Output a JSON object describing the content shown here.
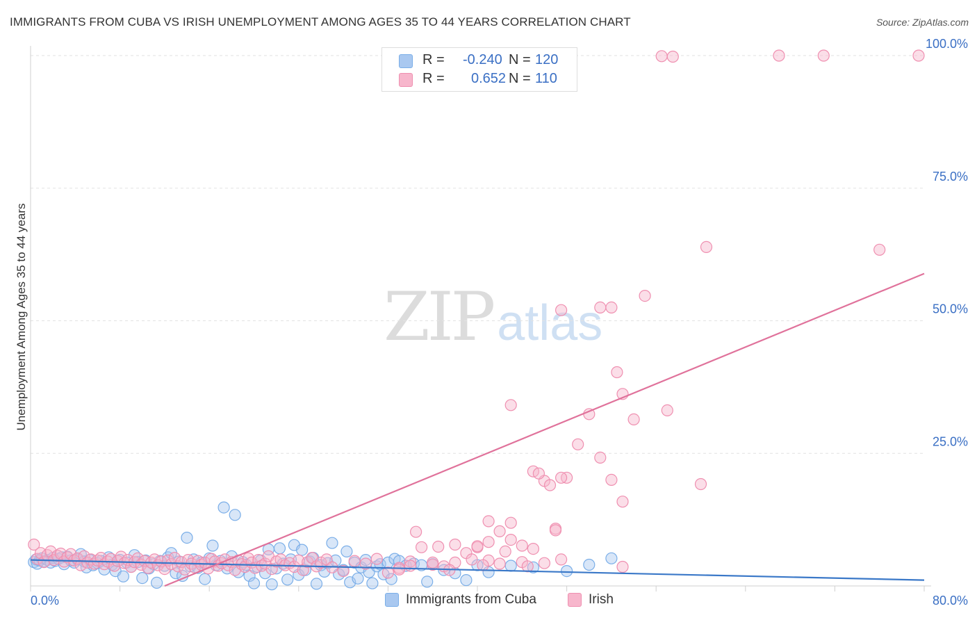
{
  "title": "IMMIGRANTS FROM CUBA VS IRISH UNEMPLOYMENT AMONG AGES 35 TO 44 YEARS CORRELATION CHART",
  "source": "Source: ZipAtlas.com",
  "watermark": {
    "zip": "ZIP",
    "atlas": "atlas"
  },
  "legend_top": [
    {
      "r_label": "R =",
      "r_value": "-0.240",
      "n_label": "N =",
      "n_value": "120",
      "color": "#a9c8f0"
    },
    {
      "r_label": "R =",
      "r_value": "0.652",
      "n_label": "N =",
      "n_value": "110",
      "color": "#f7b6cc"
    }
  ],
  "chart_data": {
    "type": "scatter",
    "title": "IMMIGRANTS FROM CUBA VS IRISH UNEMPLOYMENT AMONG AGES 35 TO 44 YEARS CORRELATION CHART",
    "xlabel": "",
    "ylabel": "Unemployment Among Ages 35 to 44 years",
    "xlim": [
      0,
      80
    ],
    "ylim": [
      0,
      100
    ],
    "x_tick_labels": [
      "0.0%",
      "80.0%"
    ],
    "y_tick_labels": [
      "25.0%",
      "50.0%",
      "75.0%",
      "100.0%"
    ],
    "grid": true,
    "legend_position": "bottom",
    "series": [
      {
        "name": "Immigrants from Cuba",
        "color": "#7aaee8",
        "fill": "#a9c8f0",
        "r": -0.24,
        "n": 120,
        "trend": {
          "x": [
            0,
            80
          ],
          "y": [
            4.9,
            1.1
          ]
        },
        "points": [
          [
            0.3,
            4.5
          ],
          [
            0.5,
            5.0
          ],
          [
            0.6,
            4.2
          ],
          [
            0.8,
            4.8
          ],
          [
            1.0,
            5.2
          ],
          [
            1.2,
            4.6
          ],
          [
            1.5,
            4.9
          ],
          [
            1.8,
            4.4
          ],
          [
            2.0,
            5.3
          ],
          [
            2.2,
            4.7
          ],
          [
            2.5,
            5.1
          ],
          [
            2.8,
            5.4
          ],
          [
            3.0,
            4.1
          ],
          [
            3.3,
            5.5
          ],
          [
            3.6,
            4.8
          ],
          [
            3.9,
            4.4
          ],
          [
            4.2,
            5.0
          ],
          [
            4.5,
            6.0
          ],
          [
            4.8,
            4.6
          ],
          [
            5.0,
            3.5
          ],
          [
            5.3,
            4.9
          ],
          [
            5.6,
            3.9
          ],
          [
            6.0,
            4.3
          ],
          [
            6.3,
            4.7
          ],
          [
            6.6,
            3.1
          ],
          [
            7.0,
            5.4
          ],
          [
            7.3,
            4.0
          ],
          [
            7.6,
            2.8
          ],
          [
            8.0,
            4.9
          ],
          [
            8.3,
            1.8
          ],
          [
            8.6,
            4.4
          ],
          [
            9.0,
            3.6
          ],
          [
            9.3,
            5.8
          ],
          [
            9.6,
            4.5
          ],
          [
            10.0,
            1.5
          ],
          [
            10.3,
            4.8
          ],
          [
            10.6,
            3.3
          ],
          [
            11.0,
            4.1
          ],
          [
            11.3,
            0.6
          ],
          [
            11.6,
            4.7
          ],
          [
            12.0,
            3.8
          ],
          [
            12.3,
            5.4
          ],
          [
            12.6,
            6.2
          ],
          [
            13.0,
            2.4
          ],
          [
            13.3,
            4.6
          ],
          [
            13.6,
            1.9
          ],
          [
            14.0,
            9.1
          ],
          [
            14.3,
            3.7
          ],
          [
            14.6,
            5.0
          ],
          [
            15.0,
            3.4
          ],
          [
            15.3,
            4.4
          ],
          [
            15.6,
            1.3
          ],
          [
            16.0,
            5.2
          ],
          [
            16.3,
            7.6
          ],
          [
            16.6,
            3.9
          ],
          [
            17.0,
            4.7
          ],
          [
            17.3,
            14.8
          ],
          [
            17.6,
            3.3
          ],
          [
            18.0,
            5.6
          ],
          [
            18.3,
            13.4
          ],
          [
            18.6,
            2.6
          ],
          [
            19.0,
            4.5
          ],
          [
            19.3,
            4.0
          ],
          [
            19.6,
            1.9
          ],
          [
            20.0,
            0.5
          ],
          [
            20.3,
            3.6
          ],
          [
            20.6,
            4.8
          ],
          [
            21.0,
            2.4
          ],
          [
            21.3,
            6.9
          ],
          [
            21.6,
            0.3
          ],
          [
            22.0,
            3.3
          ],
          [
            22.3,
            7.1
          ],
          [
            22.6,
            4.2
          ],
          [
            23.0,
            1.2
          ],
          [
            23.3,
            5.0
          ],
          [
            23.6,
            7.7
          ],
          [
            24.0,
            2.1
          ],
          [
            24.3,
            6.8
          ],
          [
            24.6,
            3.0
          ],
          [
            25.0,
            4.6
          ],
          [
            25.3,
            5.3
          ],
          [
            25.6,
            0.4
          ],
          [
            26.0,
            3.9
          ],
          [
            26.3,
            2.7
          ],
          [
            26.6,
            4.3
          ],
          [
            27.0,
            8.1
          ],
          [
            27.3,
            4.8
          ],
          [
            27.6,
            2.2
          ],
          [
            28.0,
            3.0
          ],
          [
            28.3,
            6.5
          ],
          [
            28.6,
            0.7
          ],
          [
            29.0,
            4.4
          ],
          [
            29.3,
            1.4
          ],
          [
            29.6,
            3.5
          ],
          [
            30.0,
            4.9
          ],
          [
            30.3,
            2.6
          ],
          [
            30.6,
            0.5
          ],
          [
            31.0,
            3.7
          ],
          [
            31.3,
            4.1
          ],
          [
            31.6,
            2.2
          ],
          [
            32.0,
            4.4
          ],
          [
            32.3,
            1.3
          ],
          [
            32.6,
            5.1
          ],
          [
            33.0,
            4.7
          ],
          [
            33.6,
            3.8
          ],
          [
            34.3,
            4.2
          ],
          [
            35.0,
            3.9
          ],
          [
            35.5,
            0.8
          ],
          [
            36.0,
            4.1
          ],
          [
            37.0,
            3.0
          ],
          [
            38.0,
            2.4
          ],
          [
            39.0,
            1.1
          ],
          [
            40.0,
            3.9
          ],
          [
            41.0,
            2.6
          ],
          [
            43.0,
            3.8
          ],
          [
            45.0,
            3.5
          ],
          [
            48.0,
            2.8
          ],
          [
            50.0,
            4.0
          ],
          [
            52.0,
            5.2
          ]
        ]
      },
      {
        "name": "Irish",
        "color": "#ef8fb0",
        "fill": "#f7b6cc",
        "r": 0.652,
        "n": 110,
        "trend": {
          "x": [
            12,
            80
          ],
          "y": [
            0,
            58.9
          ]
        },
        "points": [
          [
            0.3,
            7.8
          ],
          [
            0.6,
            5.1
          ],
          [
            0.9,
            6.2
          ],
          [
            1.2,
            4.5
          ],
          [
            1.5,
            5.8
          ],
          [
            1.8,
            6.5
          ],
          [
            2.1,
            4.9
          ],
          [
            2.4,
            5.7
          ],
          [
            2.7,
            6.1
          ],
          [
            3.0,
            4.6
          ],
          [
            3.3,
            5.4
          ],
          [
            3.6,
            6.0
          ],
          [
            3.9,
            4.8
          ],
          [
            4.2,
            5.2
          ],
          [
            4.5,
            3.9
          ],
          [
            4.8,
            5.6
          ],
          [
            5.1,
            4.4
          ],
          [
            5.4,
            5.0
          ],
          [
            5.7,
            4.2
          ],
          [
            6.0,
            4.8
          ],
          [
            6.3,
            5.3
          ],
          [
            6.6,
            4.1
          ],
          [
            6.9,
            4.6
          ],
          [
            7.2,
            5.1
          ],
          [
            7.5,
            3.8
          ],
          [
            7.8,
            4.7
          ],
          [
            8.1,
            5.5
          ],
          [
            8.4,
            4.3
          ],
          [
            8.7,
            4.9
          ],
          [
            9.0,
            3.6
          ],
          [
            9.3,
            4.5
          ],
          [
            9.6,
            5.2
          ],
          [
            9.9,
            4.0
          ],
          [
            10.2,
            4.7
          ],
          [
            10.5,
            3.4
          ],
          [
            10.8,
            4.4
          ],
          [
            11.1,
            5.0
          ],
          [
            11.4,
            3.9
          ],
          [
            11.7,
            4.6
          ],
          [
            12.0,
            3.2
          ],
          [
            12.3,
            4.8
          ],
          [
            12.6,
            4.1
          ],
          [
            12.9,
            5.3
          ],
          [
            13.2,
            3.7
          ],
          [
            13.5,
            4.5
          ],
          [
            13.8,
            3.1
          ],
          [
            14.1,
            4.9
          ],
          [
            14.4,
            4.2
          ],
          [
            14.7,
            3.5
          ],
          [
            15.0,
            4.7
          ],
          [
            15.3,
            4.0
          ],
          [
            15.6,
            4.4
          ],
          [
            15.9,
            3.3
          ],
          [
            16.2,
            5.1
          ],
          [
            16.5,
            4.6
          ],
          [
            16.8,
            3.8
          ],
          [
            17.1,
            4.3
          ],
          [
            17.4,
            5.0
          ],
          [
            17.7,
            3.9
          ],
          [
            18.0,
            4.5
          ],
          [
            18.3,
            3.0
          ],
          [
            18.6,
            4.8
          ],
          [
            18.9,
            4.1
          ],
          [
            19.2,
            3.6
          ],
          [
            19.5,
            5.2
          ],
          [
            19.8,
            4.4
          ],
          [
            20.1,
            3.4
          ],
          [
            20.4,
            4.9
          ],
          [
            20.7,
            3.8
          ],
          [
            21.0,
            4.2
          ],
          [
            21.3,
            5.6
          ],
          [
            21.6,
            3.2
          ],
          [
            22.0,
            4.6
          ],
          [
            22.4,
            5.0
          ],
          [
            22.8,
            3.9
          ],
          [
            23.2,
            4.3
          ],
          [
            23.6,
            3.6
          ],
          [
            24.0,
            4.8
          ],
          [
            24.4,
            3.0
          ],
          [
            24.8,
            4.5
          ],
          [
            25.2,
            5.3
          ],
          [
            25.6,
            3.7
          ],
          [
            26.0,
            4.4
          ],
          [
            26.5,
            5.0
          ],
          [
            27.0,
            3.5
          ],
          [
            28.0,
            2.8
          ],
          [
            29.0,
            4.7
          ],
          [
            30.0,
            4.2
          ],
          [
            31.0,
            5.1
          ],
          [
            32.0,
            2.5
          ],
          [
            33.0,
            3.4
          ],
          [
            34.0,
            4.6
          ],
          [
            35.0,
            7.3
          ],
          [
            36.0,
            4.0
          ],
          [
            37.0,
            3.7
          ],
          [
            38.0,
            4.4
          ],
          [
            39.0,
            6.2
          ],
          [
            40.0,
            7.3
          ],
          [
            41.0,
            8.3
          ],
          [
            42.0,
            10.3
          ],
          [
            43.0,
            8.7
          ],
          [
            44.0,
            7.6
          ],
          [
            45.0,
            21.6
          ],
          [
            46.0,
            19.8
          ],
          [
            47.0,
            10.8
          ],
          [
            48.0,
            20.4
          ],
          [
            49.0,
            26.7
          ],
          [
            50.0,
            32.4
          ],
          [
            51.0,
            24.2
          ],
          [
            52.0,
            20.0
          ],
          [
            53.0,
            36.2
          ],
          [
            54.0,
            31.4
          ]
        ]
      }
    ],
    "outliers": {
      "Irish": [
        [
          43.0,
          11.9
        ],
        [
          34.5,
          10.2
        ],
        [
          40.0,
          7.5
        ],
        [
          38.0,
          7.8
        ],
        [
          36.5,
          7.4
        ],
        [
          42.5,
          6.5
        ],
        [
          45.0,
          7.0
        ],
        [
          47.5,
          5.0
        ],
        [
          53.0,
          3.6
        ],
        [
          44.0,
          4.5
        ],
        [
          41.0,
          4.8
        ],
        [
          39.5,
          5.0
        ],
        [
          36.0,
          4.4
        ],
        [
          34.0,
          3.8
        ],
        [
          33.0,
          3.1
        ],
        [
          37.5,
          3.0
        ],
        [
          40.5,
          3.9
        ],
        [
          42.0,
          4.2
        ],
        [
          44.5,
          3.7
        ],
        [
          46.0,
          4.3
        ]
      ],
      "Irish_high": [
        [
          57.5,
          99.8
        ],
        [
          56.5,
          99.9
        ],
        [
          67.0,
          100.0
        ],
        [
          71.0,
          100.0
        ],
        [
          79.5,
          100.0
        ],
        [
          60.5,
          63.9
        ],
        [
          76.0,
          63.4
        ],
        [
          52.0,
          52.5
        ],
        [
          51.0,
          52.5
        ],
        [
          47.5,
          52.0
        ],
        [
          55.0,
          54.7
        ],
        [
          52.5,
          40.3
        ],
        [
          43.0,
          34.1
        ],
        [
          57.0,
          33.1
        ],
        [
          45.5,
          21.2
        ],
        [
          46.5,
          19.0
        ],
        [
          47.5,
          20.4
        ],
        [
          53.0,
          15.9
        ],
        [
          60.0,
          19.2
        ],
        [
          47.0,
          10.5
        ],
        [
          41.0,
          12.2
        ]
      ]
    }
  },
  "legend_bottom": [
    {
      "label": "Immigrants from Cuba",
      "color": "#a9c8f0"
    },
    {
      "label": "Irish",
      "color": "#f7b6cc"
    }
  ]
}
